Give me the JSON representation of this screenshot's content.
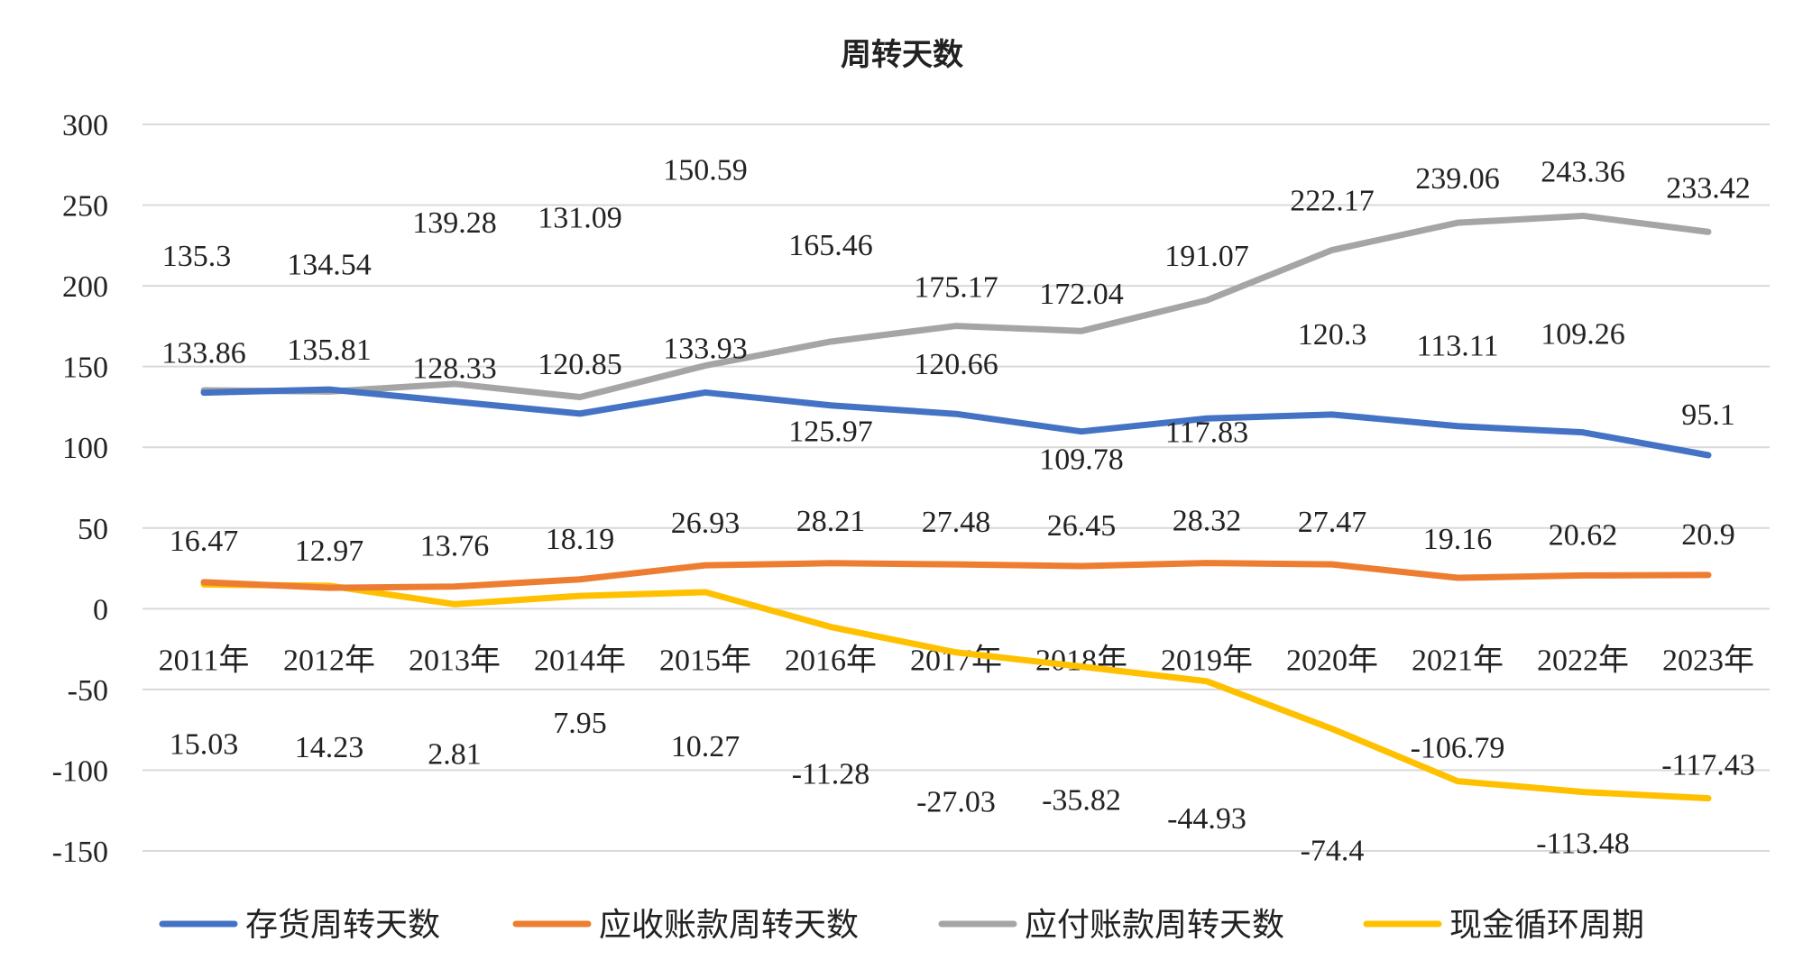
{
  "chart_data": {
    "type": "line",
    "title": "周转天数",
    "categories": [
      "2011年",
      "2012年",
      "2013年",
      "2014年",
      "2015年",
      "2016年",
      "2017年",
      "2018年",
      "2019年",
      "2020年",
      "2021年",
      "2022年",
      "2023年"
    ],
    "y_ticks": [
      "300",
      "250",
      "200",
      "150",
      "100",
      "50",
      "0",
      "-50",
      "-100",
      "-150"
    ],
    "ylim": [
      -150,
      300
    ],
    "grid": true,
    "legend_position": "bottom",
    "series": [
      {
        "name": "存货周转天数",
        "color": "#4472C4",
        "values": [
          133.86,
          135.81,
          128.33,
          120.85,
          133.93,
          125.97,
          120.66,
          109.78,
          117.83,
          120.3,
          113.11,
          109.26,
          95.1
        ],
        "labels": [
          "133.86",
          "135.81",
          "128.33",
          "120.85",
          "133.93",
          "125.97",
          "120.66",
          "109.78",
          "117.83",
          "120.3",
          "113.11",
          "109.26",
          "95.1"
        ]
      },
      {
        "name": "应收账款周转天数",
        "color": "#ED7D31",
        "values": [
          16.47,
          12.97,
          13.76,
          18.19,
          26.93,
          28.21,
          27.48,
          26.45,
          28.32,
          27.47,
          19.16,
          20.62,
          20.9
        ],
        "labels": [
          "16.47",
          "12.97",
          "13.76",
          "18.19",
          "26.93",
          "28.21",
          "27.48",
          "26.45",
          "28.32",
          "27.47",
          "19.16",
          "20.62",
          "20.9"
        ]
      },
      {
        "name": "应付账款周转天数",
        "color": "#A5A5A5",
        "values": [
          135.3,
          134.54,
          139.28,
          131.09,
          150.59,
          165.46,
          175.17,
          172.04,
          191.07,
          222.17,
          239.06,
          243.36,
          233.42
        ],
        "labels": [
          "135.3",
          "134.54",
          "139.28",
          "131.09",
          "150.59",
          "165.46",
          "175.17",
          "172.04",
          "191.07",
          "222.17",
          "239.06",
          "243.36",
          "233.42"
        ]
      },
      {
        "name": "现金循环周期",
        "color": "#FFC000",
        "values": [
          15.03,
          14.23,
          2.81,
          7.95,
          10.27,
          -11.28,
          -27.03,
          -35.82,
          -44.93,
          -74.4,
          -106.79,
          -113.48,
          -117.43
        ],
        "labels": [
          "15.03",
          "14.23",
          "2.81",
          "7.95",
          "10.27",
          "-11.28",
          "-27.03",
          "-35.82",
          "-44.93",
          "-74.4",
          "-106.79",
          "-113.48",
          "-117.43"
        ]
      }
    ]
  }
}
